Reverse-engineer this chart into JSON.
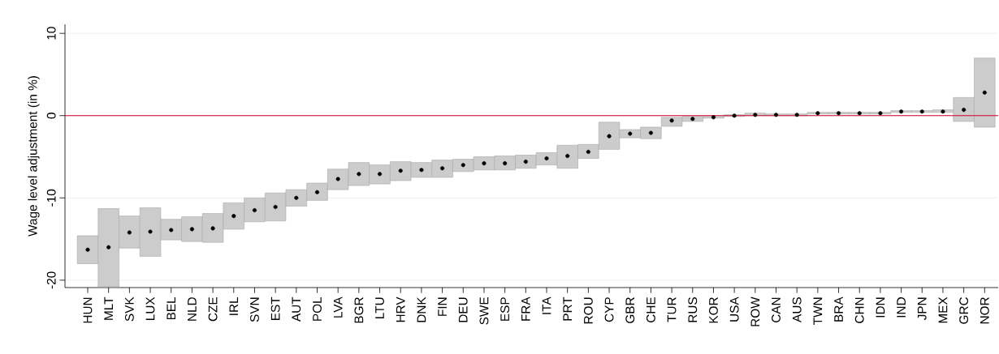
{
  "chart_data": {
    "type": "bar",
    "ylabel": "Wage level adjustment (in %)",
    "categories": [
      "HUN",
      "MLT",
      "SVK",
      "LUX",
      "BEL",
      "NLD",
      "CZE",
      "IRL",
      "SVN",
      "EST",
      "AUT",
      "POL",
      "LVA",
      "BGR",
      "LTU",
      "HRV",
      "DNK",
      "FIN",
      "DEU",
      "SWE",
      "ESP",
      "FRA",
      "ITA",
      "PRT",
      "ROU",
      "CYP",
      "GBR",
      "CHE",
      "TUR",
      "RUS",
      "KOR",
      "USA",
      "ROW",
      "CAN",
      "AUS",
      "TWN",
      "BRA",
      "CHN",
      "IDN",
      "IND",
      "JPN",
      "MEX",
      "GRC",
      "NOR"
    ],
    "series": [
      {
        "color": "#cccccc",
        "base": [
          -18.0,
          -20.8,
          -16.1,
          -17.1,
          -15.1,
          -15.3,
          -15.4,
          -13.8,
          -12.9,
          -12.8,
          -11.0,
          -10.3,
          -9.0,
          -8.5,
          -8.3,
          -7.9,
          -7.5,
          -7.5,
          -6.8,
          -6.6,
          -6.6,
          -6.4,
          -6.0,
          -6.4,
          -5.2,
          -4.1,
          -2.7,
          -2.8,
          -1.3,
          -0.7,
          -0.3,
          -0.1,
          0.0,
          0.0,
          0.0,
          0.2,
          0.2,
          0.2,
          0.2,
          0.4,
          0.4,
          0.4,
          -0.7,
          -1.4
        ],
        "values": [
          3.4,
          9.5,
          3.9,
          5.9,
          2.5,
          3.0,
          3.5,
          3.2,
          2.9,
          3.4,
          2.0,
          2.1,
          2.5,
          2.8,
          2.3,
          2.3,
          1.8,
          2.1,
          1.5,
          1.6,
          1.7,
          1.6,
          1.5,
          2.8,
          1.7,
          3.3,
          1.0,
          1.4,
          1.1,
          0.6,
          0.2,
          0.2,
          0.3,
          0.2,
          0.2,
          0.2,
          0.2,
          0.2,
          0.2,
          0.2,
          0.2,
          0.3,
          2.9,
          8.4
        ]
      },
      {
        "type": "scatter",
        "color": "#000000",
        "values": [
          -16.3,
          -16.0,
          -14.2,
          -14.1,
          -13.9,
          -13.8,
          -13.7,
          -12.2,
          -11.5,
          -11.1,
          -10.0,
          -9.3,
          -7.7,
          -7.1,
          -7.1,
          -6.7,
          -6.6,
          -6.4,
          -6.0,
          -5.8,
          -5.8,
          -5.6,
          -5.2,
          -4.9,
          -4.4,
          -2.5,
          -2.2,
          -2.1,
          -0.6,
          -0.4,
          -0.2,
          0.0,
          0.1,
          0.1,
          0.1,
          0.3,
          0.3,
          0.3,
          0.3,
          0.5,
          0.5,
          0.5,
          0.7,
          2.8
        ]
      }
    ],
    "ylim": [
      -20.9,
      11.1
    ],
    "yticks": [
      -20,
      -10,
      0,
      10
    ],
    "grid": "y",
    "marker": "circle",
    "ref_lines": [
      {
        "axis": "y",
        "value": 0,
        "color": "#cc0033"
      }
    ]
  }
}
